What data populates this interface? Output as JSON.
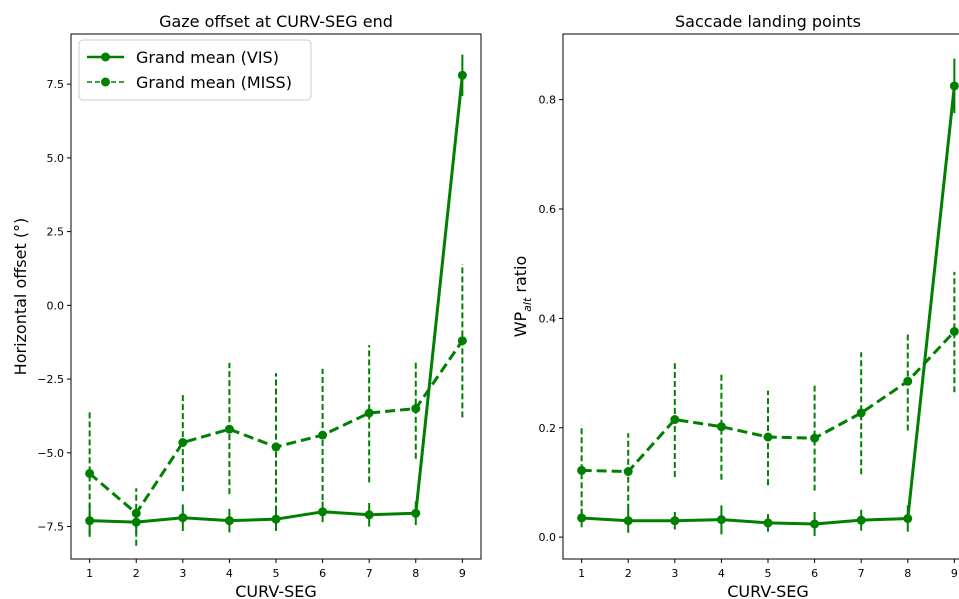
{
  "chart_data": [
    {
      "type": "line",
      "title": "Gaze offset at CURV-SEG end",
      "xlabel": "CURV-SEG",
      "ylabel": "Horizontal offset (°)",
      "ylim": [
        -8.6,
        9.2
      ],
      "xlim": [
        0.6,
        9.4
      ],
      "x": [
        1,
        2,
        3,
        4,
        5,
        6,
        7,
        8,
        9
      ],
      "xticks": [
        "1",
        "2",
        "3",
        "4",
        "5",
        "6",
        "7",
        "8",
        "9"
      ],
      "yticks": [
        -7.5,
        -5.0,
        -2.5,
        0.0,
        2.5,
        5.0,
        7.5
      ],
      "ytick_labels": [
        "−7.5",
        "−5.0",
        "−2.5",
        "0.0",
        "2.5",
        "5.0",
        "7.5"
      ],
      "legend": "top-left",
      "grid": false,
      "color": "#008000",
      "series": [
        {
          "name": "Grand mean (VIS)",
          "style": "solid",
          "values": [
            -7.3,
            -7.35,
            -7.2,
            -7.3,
            -7.25,
            -7.0,
            -7.1,
            -7.05,
            7.8
          ],
          "err_low": [
            -7.85,
            -7.75,
            -7.65,
            -7.7,
            -7.65,
            -7.35,
            -7.5,
            -7.45,
            7.1
          ],
          "err_high": [
            -6.75,
            -6.95,
            -6.75,
            -6.9,
            -6.85,
            -6.65,
            -6.7,
            -6.65,
            8.5
          ]
        },
        {
          "name": "Grand mean (MISS)",
          "style": "dashed",
          "values": [
            -5.7,
            -7.05,
            -4.65,
            -4.2,
            -4.8,
            -4.4,
            -3.65,
            -3.5,
            -1.2
          ],
          "err_low": [
            -7.8,
            -8.15,
            -6.3,
            -6.4,
            -7.3,
            -6.6,
            -6.0,
            -5.2,
            -3.8
          ],
          "err_high": [
            -3.6,
            -6.2,
            -3.0,
            -1.95,
            -2.3,
            -2.15,
            -1.35,
            -1.85,
            1.4
          ]
        }
      ]
    },
    {
      "type": "line",
      "title": "Saccade landing points",
      "xlabel": "CURV-SEG",
      "ylabel_main": "WP",
      "ylabel_sub": "alt",
      "ylabel_rest": " ratio",
      "ylim": [
        -0.04,
        0.92
      ],
      "xlim": [
        0.6,
        9.4
      ],
      "x": [
        1,
        2,
        3,
        4,
        5,
        6,
        7,
        8,
        9
      ],
      "xticks": [
        "1",
        "2",
        "3",
        "4",
        "5",
        "6",
        "7",
        "8",
        "9"
      ],
      "yticks": [
        0.0,
        0.2,
        0.4,
        0.6,
        0.8
      ],
      "ytick_labels": [
        "0.0",
        "0.2",
        "0.4",
        "0.6",
        "0.8"
      ],
      "grid": false,
      "color": "#008000",
      "series": [
        {
          "style": "solid",
          "values": [
            0.035,
            0.03,
            0.03,
            0.032,
            0.026,
            0.024,
            0.031,
            0.034,
            0.825
          ],
          "err_low": [
            0.018,
            0.008,
            0.014,
            0.005,
            0.01,
            0.002,
            0.012,
            0.01,
            0.775
          ],
          "err_high": [
            0.052,
            0.052,
            0.046,
            0.058,
            0.042,
            0.046,
            0.05,
            0.058,
            0.875
          ]
        },
        {
          "style": "dashed",
          "values": [
            0.122,
            0.12,
            0.215,
            0.202,
            0.183,
            0.181,
            0.227,
            0.285,
            0.376
          ],
          "err_low": [
            0.04,
            0.05,
            0.11,
            0.105,
            0.095,
            0.085,
            0.115,
            0.195,
            0.265
          ],
          "err_high": [
            0.205,
            0.19,
            0.318,
            0.298,
            0.268,
            0.278,
            0.338,
            0.372,
            0.485
          ]
        }
      ]
    }
  ]
}
